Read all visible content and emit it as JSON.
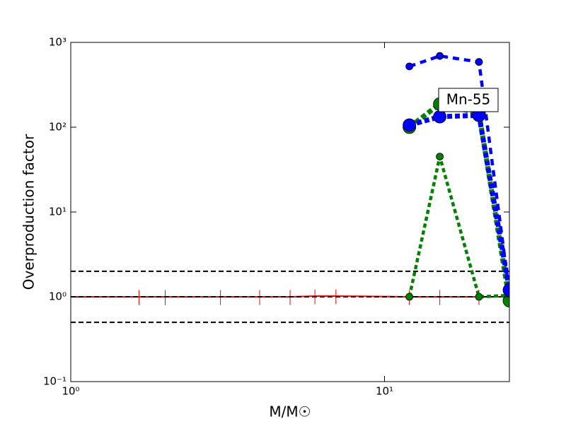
{
  "chart_data": {
    "type": "line",
    "xlabel": "M/M☉",
    "ylabel": "Overproduction factor",
    "annotation": "Mn-55",
    "xlog": true,
    "ylog": true,
    "xlim": [
      1,
      25
    ],
    "ylim": [
      0.1,
      1000
    ],
    "xticks": [
      {
        "value": 1,
        "label": "10⁰"
      },
      {
        "value": 10,
        "label": "10¹"
      }
    ],
    "yticks": [
      {
        "value": 0.1,
        "label": "10⁻¹"
      },
      {
        "value": 1,
        "label": "10⁰"
      },
      {
        "value": 10,
        "label": "10¹"
      },
      {
        "value": 100,
        "label": "10²"
      },
      {
        "value": 1000,
        "label": "10³"
      }
    ],
    "hlines": [
      2,
      1,
      0.5
    ],
    "series": [
      {
        "color": "#ff0000",
        "x": [
          1,
          1.65,
          2,
          3,
          4,
          5,
          6,
          7,
          12,
          15,
          20,
          25
        ],
        "values": [
          1,
          1,
          1,
          1,
          1,
          1,
          1.02,
          1.02,
          1,
          1,
          1,
          1
        ],
        "errors": [
          0.2,
          0.2,
          0.2,
          0.2,
          0.2,
          0.2,
          0.2,
          0.2,
          0.2,
          0.2,
          0.2,
          0.2
        ]
      },
      {
        "color": "#008000",
        "x": [
          12,
          15,
          20,
          25
        ],
        "values": [
          1,
          45,
          1,
          1.04
        ]
      },
      {
        "color": "#008000",
        "x": [
          12,
          15,
          20,
          25
        ],
        "values": [
          100,
          188,
          146,
          0.9
        ]
      },
      {
        "color": "#0000ff",
        "x": [
          12,
          15,
          20,
          25
        ],
        "values": [
          521,
          692,
          588,
          1.1
        ]
      },
      {
        "color": "#0000ff",
        "x": [
          12,
          15,
          20,
          25
        ],
        "values": [
          106,
          133,
          138,
          1.2
        ]
      }
    ]
  }
}
